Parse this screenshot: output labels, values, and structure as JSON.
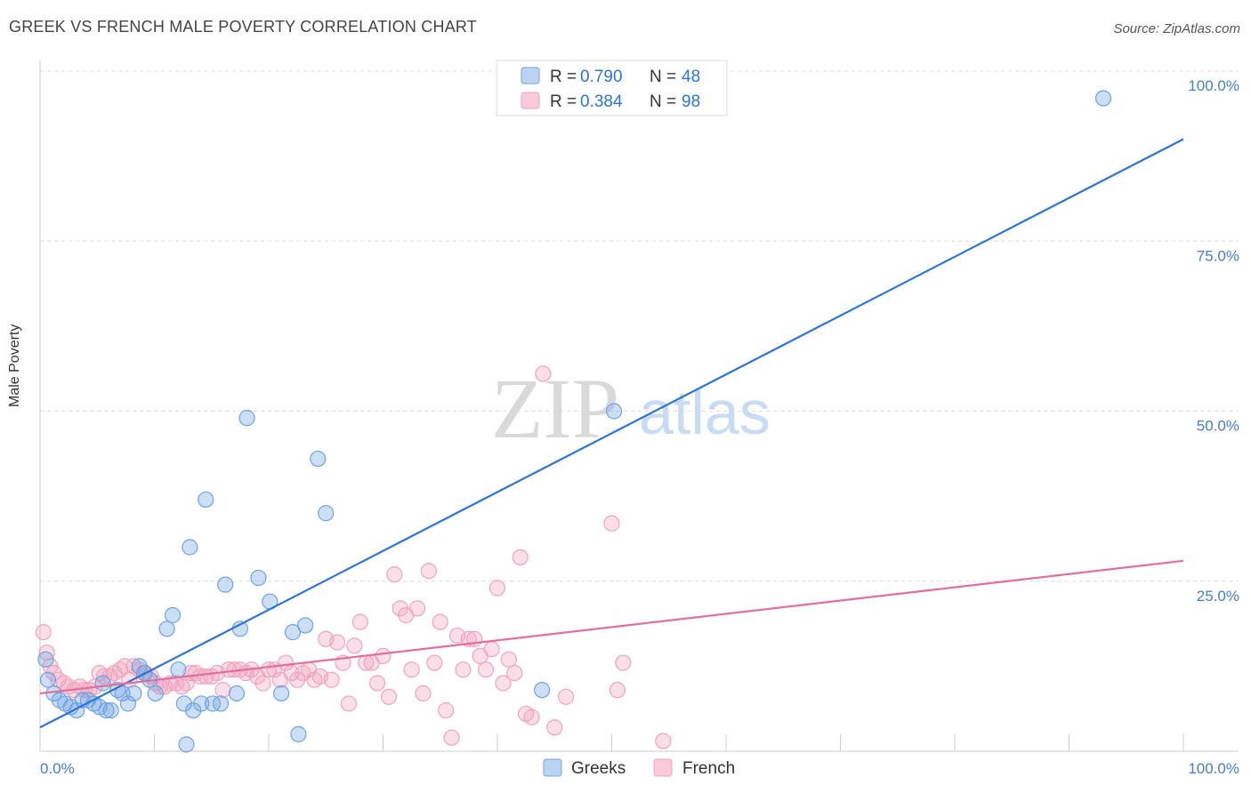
{
  "title": "GREEK VS FRENCH MALE POVERTY CORRELATION CHART",
  "source": "Source: ZipAtlas.com",
  "watermark": {
    "part1": "ZIP",
    "part2": "atlas"
  },
  "colors": {
    "greeks": "#6fa3e6",
    "greeks_line": "#2f74d0",
    "french": "#f1a3bd",
    "french_line": "#e26f9b",
    "tick": "#4a7cc7"
  },
  "legend": {
    "greeks": {
      "r_label": "R =",
      "r": "0.790",
      "n_label": "N =",
      "n": "48"
    },
    "french": {
      "r_label": "R =",
      "r": "0.384",
      "n_label": "N =",
      "n": "98"
    }
  },
  "chart_data": {
    "type": "scatter",
    "title": "GREEK VS FRENCH MALE POVERTY CORRELATION CHART",
    "xlabel": "",
    "ylabel": "Male Poverty",
    "xlim": [
      0,
      100
    ],
    "ylim": [
      0,
      100
    ],
    "x_tick_labels": [
      "0.0%",
      "100.0%"
    ],
    "y_tick_labels": [
      "100.0%",
      "75.0%",
      "50.0%",
      "25.0%"
    ],
    "y_tick_values": [
      100,
      75,
      50,
      25
    ],
    "legend_position": "top-center",
    "grid": true,
    "series": [
      {
        "name": "Greeks",
        "trend": [
          [
            0,
            3.5
          ],
          [
            100,
            90
          ]
        ],
        "points": [
          [
            0.5,
            13.5
          ],
          [
            0.7,
            10.5
          ],
          [
            1.2,
            8.5
          ],
          [
            1.7,
            7.5
          ],
          [
            2.2,
            7
          ],
          [
            2.7,
            6.5
          ],
          [
            3.2,
            6
          ],
          [
            3.7,
            7.5
          ],
          [
            4.2,
            7.5
          ],
          [
            4.7,
            7
          ],
          [
            5.2,
            6.5
          ],
          [
            5.5,
            10
          ],
          [
            5.8,
            6
          ],
          [
            6.2,
            6
          ],
          [
            6.8,
            9
          ],
          [
            7.2,
            8.5
          ],
          [
            7.7,
            7
          ],
          [
            8.2,
            8.5
          ],
          [
            8.7,
            12.5
          ],
          [
            9.1,
            11.5
          ],
          [
            9.6,
            10.5
          ],
          [
            10.1,
            8.5
          ],
          [
            11.1,
            18
          ],
          [
            11.6,
            20
          ],
          [
            12.1,
            12
          ],
          [
            12.6,
            7
          ],
          [
            12.8,
            1
          ],
          [
            13.1,
            30
          ],
          [
            13.4,
            6
          ],
          [
            14.1,
            7
          ],
          [
            14.5,
            37
          ],
          [
            15.1,
            7
          ],
          [
            15.8,
            7
          ],
          [
            16.2,
            24.5
          ],
          [
            17.2,
            8.5
          ],
          [
            17.5,
            18
          ],
          [
            18.1,
            49
          ],
          [
            19.1,
            25.5
          ],
          [
            20.1,
            22
          ],
          [
            21.1,
            8.5
          ],
          [
            22.1,
            17.5
          ],
          [
            22.6,
            2.5
          ],
          [
            23.2,
            18.5
          ],
          [
            24.3,
            43
          ],
          [
            25.0,
            35
          ],
          [
            43.9,
            9
          ],
          [
            50.2,
            50
          ],
          [
            93.0,
            96
          ]
        ]
      },
      {
        "name": "French",
        "trend": [
          [
            0,
            8.5
          ],
          [
            100,
            28
          ]
        ],
        "points": [
          [
            0.3,
            17.5
          ],
          [
            0.6,
            14.5
          ],
          [
            0.9,
            12.5
          ],
          [
            1.2,
            11.5
          ],
          [
            1.6,
            10.5
          ],
          [
            2.1,
            10
          ],
          [
            2.5,
            9.5
          ],
          [
            3.0,
            9
          ],
          [
            3.5,
            9.5
          ],
          [
            3.9,
            9
          ],
          [
            4.3,
            9
          ],
          [
            4.8,
            9.5
          ],
          [
            5.2,
            11.5
          ],
          [
            5.6,
            11
          ],
          [
            6.1,
            11
          ],
          [
            6.5,
            11.5
          ],
          [
            7.0,
            12
          ],
          [
            7.4,
            12.5
          ],
          [
            7.8,
            10.5
          ],
          [
            8.2,
            12.5
          ],
          [
            8.7,
            12
          ],
          [
            9.2,
            11.5
          ],
          [
            9.7,
            11
          ],
          [
            10.1,
            10
          ],
          [
            10.5,
            9.5
          ],
          [
            10.9,
            9.5
          ],
          [
            11.4,
            10
          ],
          [
            11.9,
            10
          ],
          [
            12.4,
            9.5
          ],
          [
            12.8,
            10
          ],
          [
            13.2,
            11.5
          ],
          [
            13.6,
            11.5
          ],
          [
            14.0,
            11
          ],
          [
            14.5,
            11
          ],
          [
            15.0,
            11
          ],
          [
            15.5,
            11.5
          ],
          [
            16.0,
            9
          ],
          [
            16.5,
            12
          ],
          [
            17.0,
            12
          ],
          [
            17.5,
            12
          ],
          [
            18.0,
            11.5
          ],
          [
            18.5,
            12
          ],
          [
            19.0,
            11
          ],
          [
            19.5,
            10
          ],
          [
            20.0,
            12
          ],
          [
            20.5,
            12
          ],
          [
            21.0,
            10.5
          ],
          [
            21.5,
            13
          ],
          [
            22.0,
            11.5
          ],
          [
            22.5,
            10.5
          ],
          [
            23.0,
            11.5
          ],
          [
            23.5,
            12
          ],
          [
            24.0,
            10.5
          ],
          [
            24.5,
            11
          ],
          [
            25.0,
            16.5
          ],
          [
            25.5,
            10.5
          ],
          [
            26.0,
            16
          ],
          [
            26.5,
            13
          ],
          [
            27.0,
            7
          ],
          [
            27.5,
            15.5
          ],
          [
            28.0,
            19
          ],
          [
            28.5,
            13
          ],
          [
            29.0,
            13
          ],
          [
            29.5,
            10
          ],
          [
            30.0,
            14
          ],
          [
            30.5,
            8
          ],
          [
            31.0,
            26
          ],
          [
            31.5,
            21
          ],
          [
            32.0,
            20
          ],
          [
            32.5,
            12
          ],
          [
            33.0,
            21
          ],
          [
            33.5,
            8.5
          ],
          [
            34.0,
            26.5
          ],
          [
            34.5,
            13
          ],
          [
            35.0,
            19
          ],
          [
            35.5,
            6
          ],
          [
            36.0,
            2
          ],
          [
            36.5,
            17
          ],
          [
            37.0,
            12
          ],
          [
            37.5,
            16.5
          ],
          [
            38.0,
            16.5
          ],
          [
            38.5,
            14
          ],
          [
            39.0,
            12
          ],
          [
            39.5,
            15
          ],
          [
            40.0,
            24
          ],
          [
            40.5,
            10
          ],
          [
            41.0,
            13.5
          ],
          [
            41.5,
            11.5
          ],
          [
            42.0,
            28.5
          ],
          [
            42.5,
            5.5
          ],
          [
            43.0,
            5
          ],
          [
            44.0,
            55.5
          ],
          [
            45.0,
            3.5
          ],
          [
            46.0,
            8
          ],
          [
            50.0,
            33.5
          ],
          [
            50.5,
            9
          ],
          [
            51.0,
            13
          ],
          [
            54.5,
            1.5
          ]
        ]
      }
    ]
  }
}
